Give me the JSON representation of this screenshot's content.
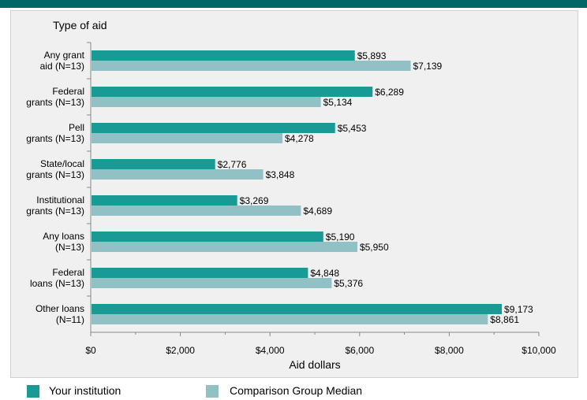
{
  "chart_data": {
    "type": "bar",
    "orientation": "horizontal",
    "ylabel": "Type of aid",
    "xlabel": "Aid dollars",
    "xlim": [
      0,
      10000
    ],
    "xticks": [
      "$0",
      "$2,000",
      "$4,000",
      "$6,000",
      "$8,000",
      "$10,000"
    ],
    "xtick_values": [
      0,
      2000,
      4000,
      6000,
      8000,
      10000
    ],
    "grid": false,
    "legend_position": "bottom",
    "categories": [
      [
        "Any grant",
        "aid (N=13)"
      ],
      [
        "Federal",
        "grants (N=13)"
      ],
      [
        "Pell",
        "grants (N=13)"
      ],
      [
        "State/local",
        "grants (N=13)"
      ],
      [
        "Institutional",
        "grants (N=13)"
      ],
      [
        "Any loans",
        "(N=13)"
      ],
      [
        "Federal",
        "loans (N=13)"
      ],
      [
        "Other loans",
        "(N=11)"
      ]
    ],
    "series": [
      {
        "name": "Your institution",
        "color": "#1a9a94",
        "values": [
          5893,
          6289,
          5453,
          2776,
          3269,
          5190,
          4848,
          9173
        ],
        "labels": [
          "$5,893",
          "$6,289",
          "$5,453",
          "$2,776",
          "$3,269",
          "$5,190",
          "$4,848",
          "$9,173"
        ]
      },
      {
        "name": "Comparison Group Median",
        "color": "#92c1c5",
        "values": [
          7139,
          5134,
          4278,
          3848,
          4689,
          5950,
          5376,
          8861
        ],
        "labels": [
          "$7,139",
          "$5,134",
          "$4,278",
          "$3,848",
          "$4,689",
          "$5,950",
          "$5,376",
          "$8,861"
        ]
      }
    ]
  }
}
